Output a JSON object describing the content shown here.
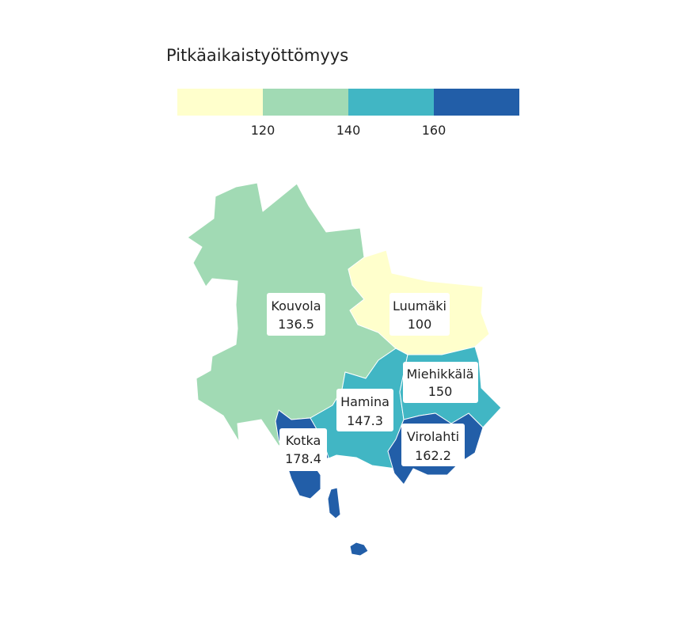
{
  "legend": {
    "title": "Pitkäaikaistyöttömyys",
    "bins": [
      {
        "color": "#ffffcc"
      },
      {
        "color": "#a1dab4"
      },
      {
        "color": "#41b6c4"
      },
      {
        "color": "#225ea8"
      }
    ],
    "ticks": [
      "120",
      "140",
      "160"
    ]
  },
  "regions": [
    {
      "key": "kouvola",
      "name": "Kouvola",
      "value": "136.5",
      "color": "#a1dab4"
    },
    {
      "key": "luumaki",
      "name": "Luumäki",
      "value": "100",
      "color": "#ffffcc"
    },
    {
      "key": "miehikkala",
      "name": "Miehikkälä",
      "value": "150",
      "color": "#41b6c4"
    },
    {
      "key": "hamina",
      "name": "Hamina",
      "value": "147.3",
      "color": "#41b6c4"
    },
    {
      "key": "virolahti",
      "name": "Virolahti",
      "value": "162.2",
      "color": "#225ea8"
    },
    {
      "key": "kotka",
      "name": "Kotka",
      "value": "178.4",
      "color": "#225ea8"
    }
  ]
}
